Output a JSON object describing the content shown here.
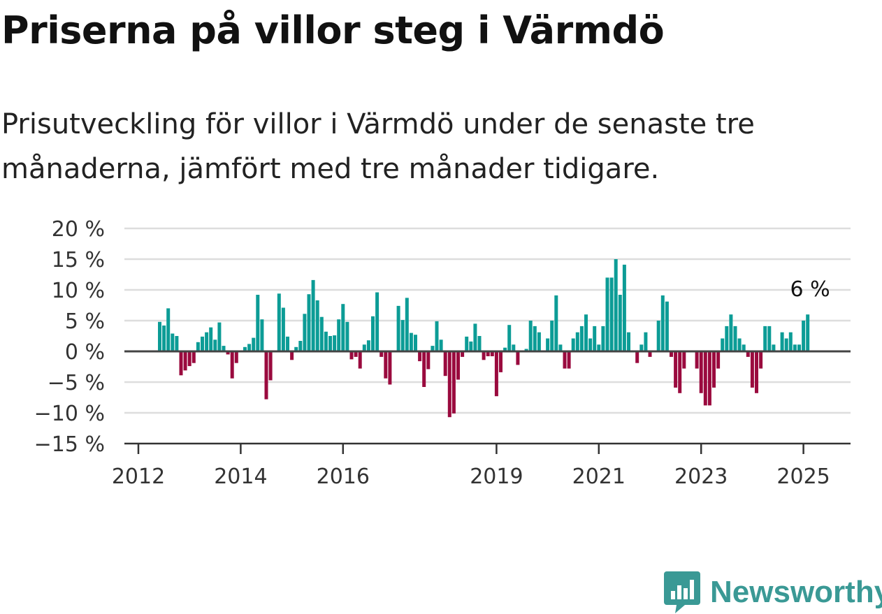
{
  "header": {
    "title": "Priserna på villor steg i Värmdö",
    "subtitle": "Prisutveckling för villor i Värmdö under de senaste tre månaderna, jämfört med tre månader tidigare."
  },
  "brand": {
    "name": "Newsworthy",
    "icon": "newsworthy-logo-icon",
    "color": "#3a9995"
  },
  "colors": {
    "positive": "#0c9c96",
    "negative": "#9a0a3e",
    "grid": "#dddddd",
    "axis": "#333333"
  },
  "chart_data": {
    "type": "bar",
    "x_start": "2012-06",
    "x_step": "1 month",
    "y_unit": "%",
    "ylim": [
      -15,
      20
    ],
    "y_ticks": [
      20,
      15,
      10,
      5,
      0,
      -5,
      -10,
      -15
    ],
    "y_tick_labels": [
      "20 %",
      "15 %",
      "10 %",
      "5 %",
      "0 %",
      "−5 %",
      "−10 %",
      "−15 %"
    ],
    "x_ticks": [
      "2012",
      "2014",
      "2016",
      "2019",
      "2021",
      "2023",
      "2025"
    ],
    "grid": true,
    "annotation": "6 %",
    "values": [
      4.8,
      4.2,
      7,
      2.9,
      2.5,
      -3.9,
      -3.1,
      -2.4,
      -1.9,
      1.5,
      2.4,
      3.1,
      3.9,
      1.9,
      4.7,
      0.9,
      -0.5,
      -4.4,
      -1.9,
      0,
      0.7,
      1.2,
      2.2,
      9.2,
      5.2,
      -7.8,
      -4.7,
      0,
      9.4,
      7.1,
      2.4,
      -1.4,
      0.7,
      1.7,
      6.1,
      9.3,
      11.6,
      8.3,
      5.6,
      3.2,
      2.5,
      2.6,
      5.2,
      7.7,
      4.8,
      -1.3,
      -0.9,
      -2.8,
      1.1,
      1.8,
      5.7,
      9.6,
      -0.9,
      -4.4,
      -5.4,
      0,
      7.4,
      5.1,
      8.7,
      3,
      2.7,
      -1.6,
      -5.8,
      -2.9,
      0.9,
      4.9,
      1.9,
      -4,
      -10.7,
      -10.1,
      -4.6,
      -0.9,
      2.4,
      1.6,
      4.5,
      2.5,
      -1.4,
      -0.8,
      -0.8,
      -7.3,
      -3.4,
      0.6,
      4.3,
      1.1,
      -2.2,
      0,
      0.4,
      5,
      4.1,
      3.1,
      0,
      2.1,
      5,
      9.1,
      1.1,
      -2.8,
      -2.8,
      2.1,
      3.1,
      4.1,
      6,
      2.1,
      4.1,
      1.1,
      4.1,
      12,
      12,
      15,
      9.2,
      14.1,
      3.1,
      0,
      -1.9,
      1.1,
      3.1,
      -0.9,
      0,
      5,
      9.1,
      8.1,
      -0.9,
      -5.9,
      -6.8,
      -2.8,
      0,
      0,
      -2.8,
      -6.8,
      -8.8,
      -8.8,
      -5.9,
      -2.8,
      2.1,
      4.1,
      6,
      4.1,
      2.1,
      1.1,
      -0.9,
      -5.9,
      -6.8,
      -2.8,
      4.1,
      4.1,
      1.1,
      0,
      3.1,
      2.1,
      3.1,
      1.1,
      1.1,
      5,
      6
    ]
  }
}
